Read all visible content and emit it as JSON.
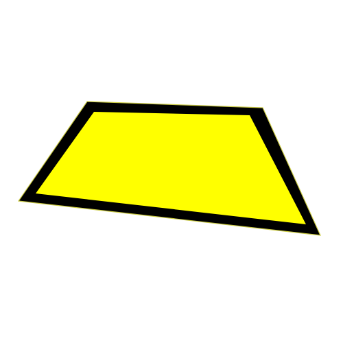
{
  "shape": {
    "kind": "quadrilateral",
    "colors": {
      "fill": "#ffff00",
      "border": "#000000",
      "outline": "#cccc44",
      "background": "#ffffff"
    }
  }
}
